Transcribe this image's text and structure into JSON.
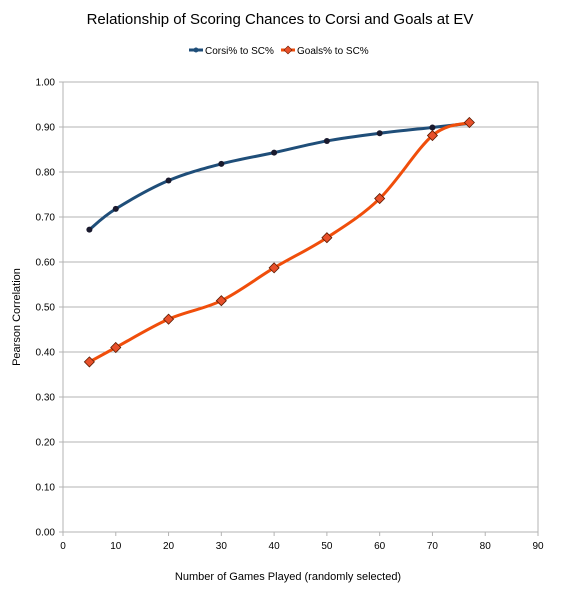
{
  "chart_data": {
    "type": "line",
    "title": "Relationship of Scoring Chances to Corsi and Goals at EV",
    "xlabel": "Number of Games Played (randomly selected)",
    "ylabel": "Pearson Correlation",
    "xlim": [
      0,
      90
    ],
    "ylim": [
      0.0,
      1.0
    ],
    "xticks": [
      0,
      10,
      20,
      30,
      40,
      50,
      60,
      70,
      80,
      90
    ],
    "yticks": [
      0.0,
      0.1,
      0.2,
      0.3,
      0.4,
      0.5,
      0.6,
      0.7,
      0.8,
      0.9,
      1.0
    ],
    "ytick_labels": [
      "0.00",
      "0.10",
      "0.20",
      "0.30",
      "0.40",
      "0.50",
      "0.60",
      "0.70",
      "0.80",
      "0.90",
      "1.00"
    ],
    "grid": "horizontal",
    "legend_position": "top",
    "series": [
      {
        "name": "Corsi% to SC%",
        "color": "#1f4e79",
        "marker": "circle",
        "x": [
          5,
          10,
          20,
          30,
          40,
          50,
          60,
          70,
          77
        ],
        "y": [
          0.672,
          0.718,
          0.781,
          0.818,
          0.843,
          0.869,
          0.886,
          0.899,
          0.908
        ]
      },
      {
        "name": "Goals% to SC%",
        "color": "#f04e0b",
        "marker": "diamond",
        "marker_color": "#e8502a",
        "x": [
          5,
          10,
          20,
          30,
          40,
          50,
          60,
          70,
          77
        ],
        "y": [
          0.378,
          0.41,
          0.473,
          0.514,
          0.587,
          0.654,
          0.741,
          0.881,
          0.91
        ]
      }
    ]
  }
}
